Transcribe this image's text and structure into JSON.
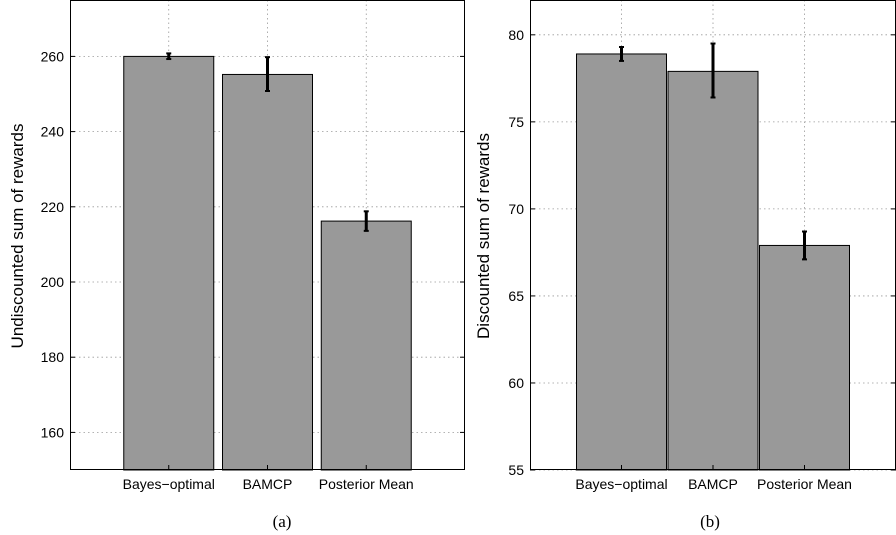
{
  "chart_data": [
    {
      "type": "bar",
      "caption": "(a)",
      "categories": [
        "Bayes−optimal",
        "BAMCP",
        "Posterior Mean"
      ],
      "values": [
        260,
        255.2,
        216.2
      ],
      "error_low": [
        259.3,
        250.8,
        213.6
      ],
      "error_high": [
        260.8,
        259.8,
        218.8
      ],
      "ylabel": "Undiscounted sum of rewards",
      "ylim": [
        150,
        275
      ],
      "yticks": [
        160,
        180,
        200,
        220,
        240,
        260
      ],
      "grid": true,
      "bar_color": "#999999"
    },
    {
      "type": "bar",
      "caption": "(b)",
      "categories": [
        "Bayes−optimal",
        "BAMCP",
        "Posterior Mean"
      ],
      "values": [
        78.9,
        77.9,
        67.9
      ],
      "error_low": [
        78.5,
        76.4,
        67.1
      ],
      "error_high": [
        79.3,
        79.5,
        68.7
      ],
      "ylabel": "Discounted sum of rewards",
      "ylim": [
        55,
        82
      ],
      "yticks": [
        55,
        60,
        65,
        70,
        75,
        80
      ],
      "grid": true,
      "bar_color": "#999999"
    }
  ]
}
